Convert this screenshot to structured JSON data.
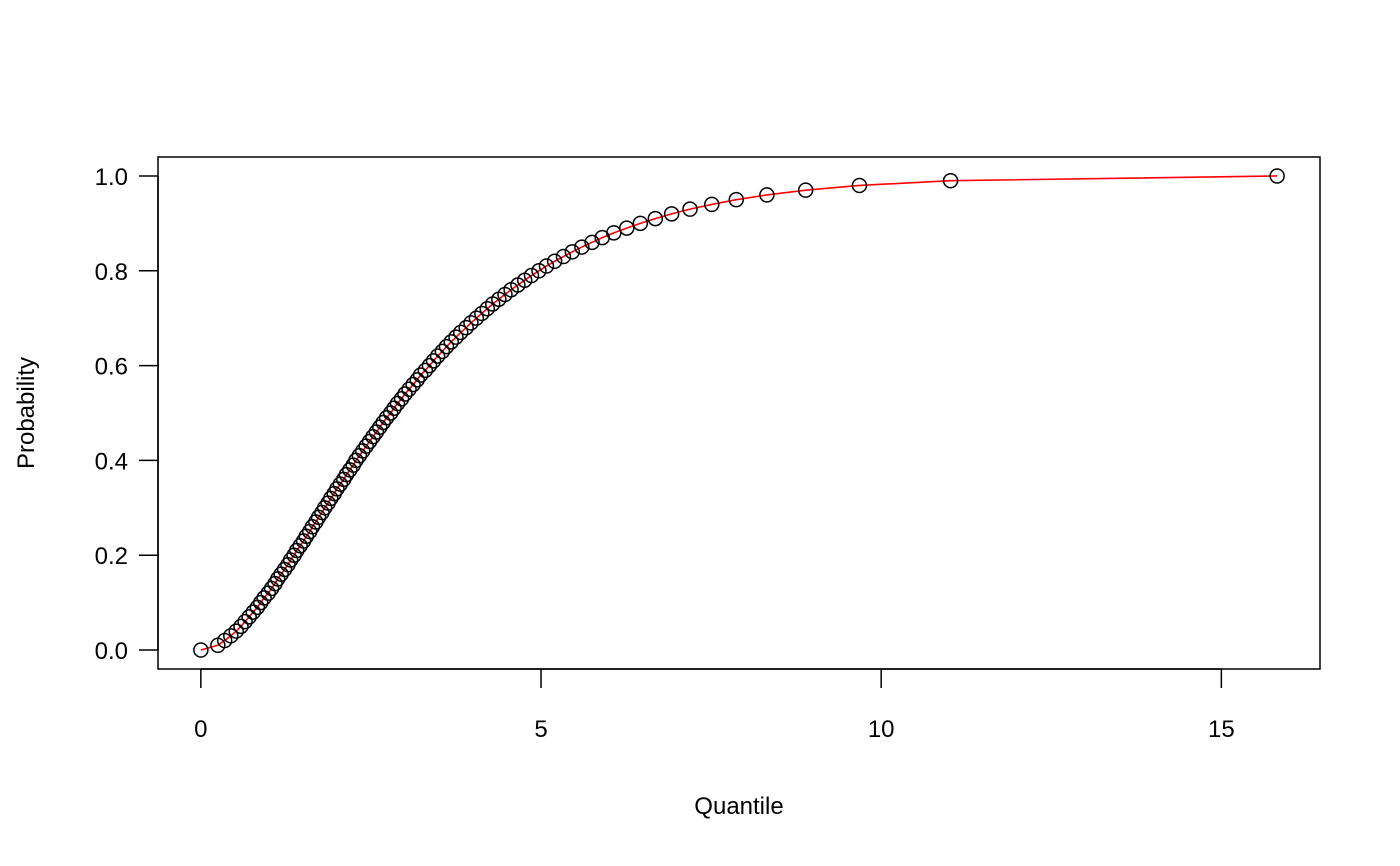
{
  "chart_data": {
    "type": "scatter",
    "x_label": "Quantile",
    "y_label": "Probability",
    "x": [
      0,
      0.25,
      0.35,
      0.44,
      0.52,
      0.59,
      0.65,
      0.71,
      0.77,
      0.83,
      0.88,
      0.93,
      0.99,
      1.04,
      1.09,
      1.13,
      1.18,
      1.23,
      1.28,
      1.32,
      1.37,
      1.41,
      1.46,
      1.51,
      1.55,
      1.6,
      1.64,
      1.69,
      1.73,
      1.78,
      1.82,
      1.87,
      1.91,
      1.96,
      2.0,
      2.05,
      2.1,
      2.14,
      2.19,
      2.24,
      2.28,
      2.33,
      2.38,
      2.43,
      2.48,
      2.53,
      2.58,
      2.63,
      2.68,
      2.73,
      2.79,
      2.84,
      2.89,
      2.95,
      3.0,
      3.06,
      3.12,
      3.18,
      3.23,
      3.3,
      3.36,
      3.42,
      3.48,
      3.55,
      3.61,
      3.68,
      3.75,
      3.82,
      3.9,
      3.97,
      4.05,
      4.13,
      4.21,
      4.29,
      4.38,
      4.47,
      4.56,
      4.66,
      4.76,
      4.86,
      4.97,
      5.08,
      5.2,
      5.33,
      5.46,
      5.6,
      5.75,
      5.9,
      6.07,
      6.26,
      6.46,
      6.68,
      6.92,
      7.19,
      7.51,
      7.87,
      8.32,
      8.89,
      9.68,
      11.02,
      15.82
    ],
    "values": [
      0,
      0.01,
      0.02,
      0.03,
      0.04,
      0.05,
      0.06,
      0.07,
      0.08,
      0.09,
      0.1,
      0.11,
      0.12,
      0.13,
      0.14,
      0.15,
      0.16,
      0.17,
      0.18,
      0.19,
      0.2,
      0.21,
      0.22,
      0.23,
      0.24,
      0.25,
      0.26,
      0.27,
      0.28,
      0.29,
      0.3,
      0.31,
      0.32,
      0.33,
      0.34,
      0.35,
      0.36,
      0.37,
      0.38,
      0.39,
      0.4,
      0.41,
      0.42,
      0.43,
      0.44,
      0.45,
      0.46,
      0.47,
      0.48,
      0.49,
      0.5,
      0.51,
      0.52,
      0.53,
      0.54,
      0.55,
      0.56,
      0.57,
      0.58,
      0.59,
      0.6,
      0.61,
      0.62,
      0.63,
      0.64,
      0.65,
      0.66,
      0.67,
      0.68,
      0.69,
      0.7,
      0.71,
      0.72,
      0.73,
      0.74,
      0.75,
      0.76,
      0.77,
      0.78,
      0.79,
      0.8,
      0.81,
      0.82,
      0.83,
      0.84,
      0.85,
      0.86,
      0.87,
      0.88,
      0.89,
      0.9,
      0.91,
      0.92,
      0.93,
      0.94,
      0.95,
      0.96,
      0.97,
      0.98,
      0.99,
      1
    ],
    "marker_color": "#000000",
    "line_color": "#ff0000",
    "xlim": [
      -0.63,
      16.45
    ],
    "ylim": [
      -0.04,
      1.04
    ],
    "xticks": [
      0,
      5,
      10,
      15
    ],
    "yticks": [
      {
        "value": 0,
        "label": "0.0"
      },
      0.2,
      0.4,
      0.6,
      0.8,
      {
        "value": 1,
        "label": "1.0"
      }
    ],
    "grid": false
  }
}
